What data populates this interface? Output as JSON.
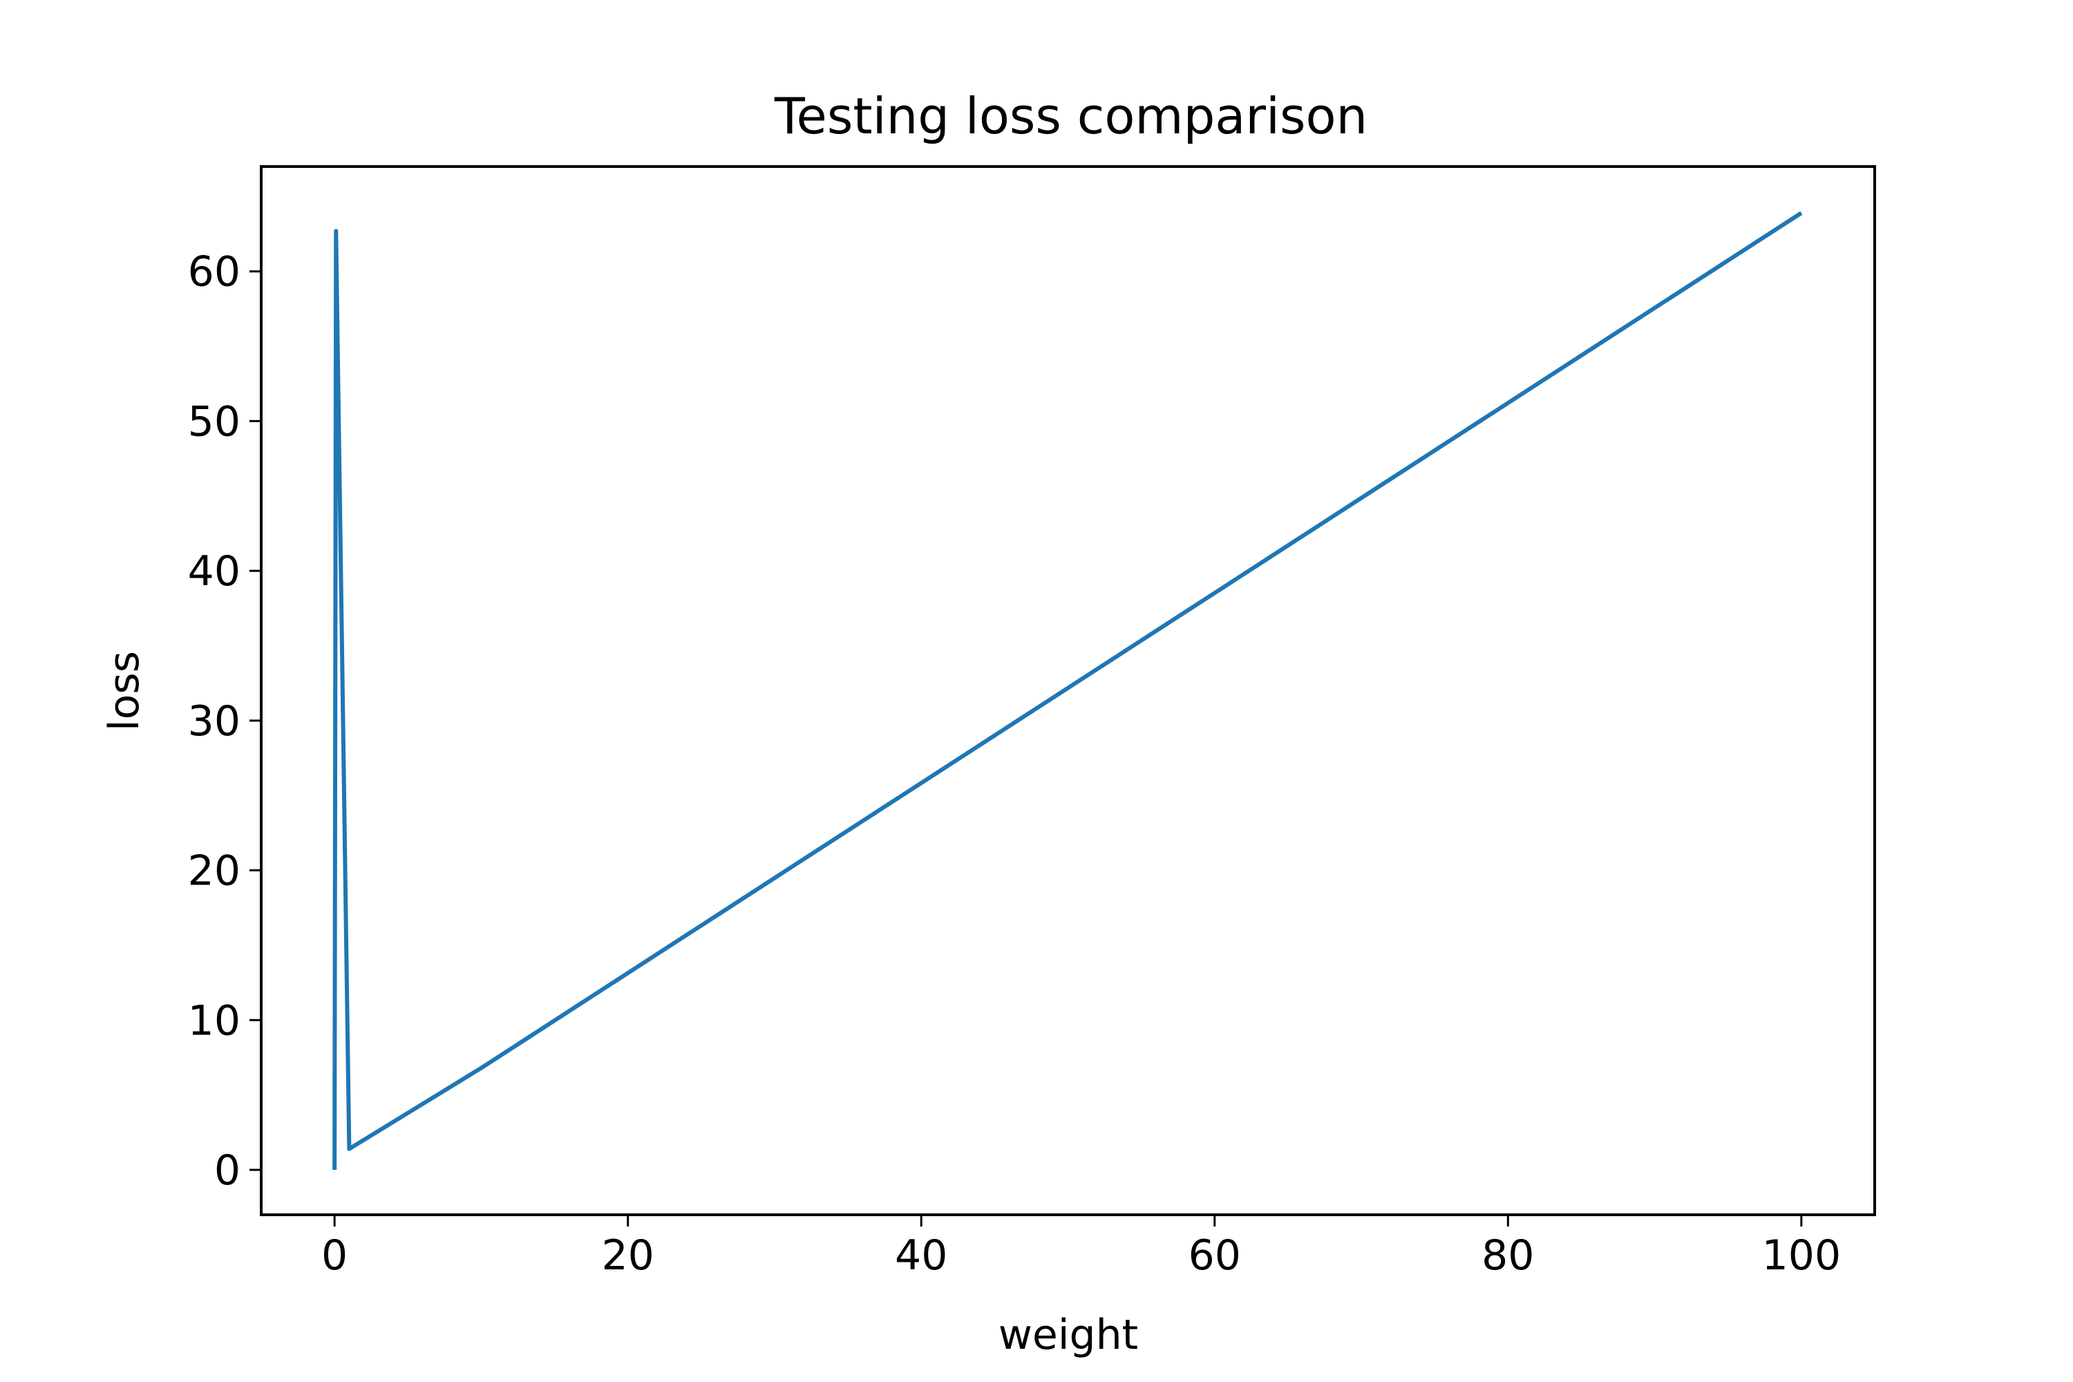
{
  "chart_data": {
    "type": "line",
    "title": "Testing loss comparison",
    "xlabel": "weight",
    "ylabel": "loss",
    "xlim": [
      -5,
      105
    ],
    "ylim": [
      -3,
      67
    ],
    "xticks": [
      0,
      20,
      40,
      60,
      80,
      100
    ],
    "yticks": [
      0,
      10,
      20,
      30,
      40,
      50,
      60
    ],
    "grid": false,
    "line_color": "#1f77b4",
    "series": [
      {
        "x": [
          0,
          0.1,
          1,
          10,
          100
        ],
        "y": [
          0,
          62.7,
          1.4,
          6.8,
          63.9
        ]
      }
    ]
  }
}
